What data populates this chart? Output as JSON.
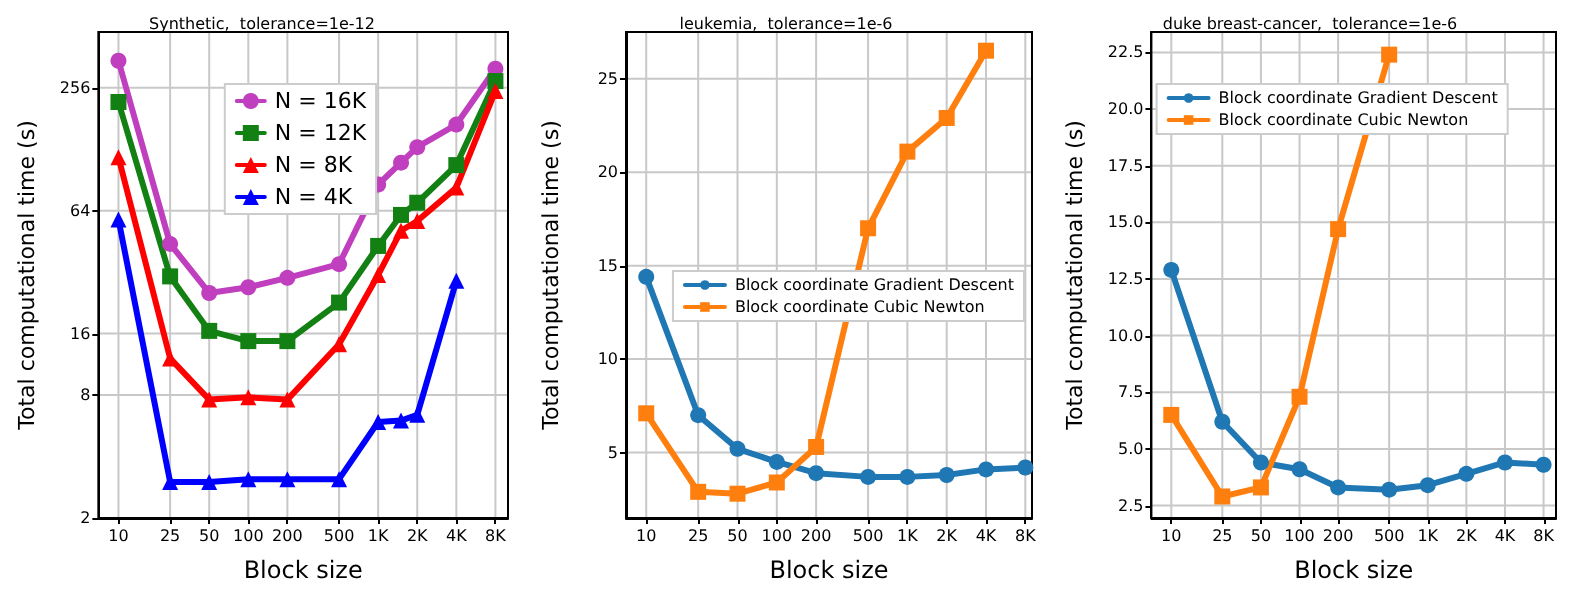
{
  "chart_data": [
    {
      "type": "line",
      "title": "Synthetic,  tolerance=1e-12",
      "xlabel": "Block size",
      "ylabel": "Total computational time (s)",
      "log": "xy",
      "grid": true,
      "legend": "top",
      "line_style": "solid",
      "xlim": [
        7,
        10000
      ],
      "ylim": [
        2,
        480
      ],
      "xticks": [
        10,
        25,
        50,
        100,
        200,
        500,
        {
          "value": 1000,
          "label": "1K"
        },
        {
          "value": 2000,
          "label": "2K"
        },
        {
          "value": 4000,
          "label": "4K"
        },
        {
          "value": 8000,
          "label": "8K"
        }
      ],
      "yticks": [
        2,
        8,
        16,
        64,
        256
      ],
      "series": [
        {
          "name": "N = 16K",
          "color": "#bf3fbf",
          "marker": "circle",
          "x": [
            10,
            25,
            50,
            100,
            200,
            500,
            1000,
            1500,
            2000,
            4000,
            8000
          ],
          "values": [
            347,
            44,
            25.3,
            27,
            30,
            35,
            86,
            110,
            131,
            169,
            317
          ]
        },
        {
          "name": "N = 12K",
          "color": "#138013",
          "marker": "square",
          "x": [
            10,
            25,
            50,
            100,
            200,
            500,
            1000,
            1500,
            2000,
            4000,
            8000
          ],
          "values": [
            218,
            30.5,
            16.5,
            14.7,
            14.7,
            22.7,
            43,
            61,
            70,
            107,
            276
          ]
        },
        {
          "name": "N = 8K",
          "color": "#ff0000",
          "marker": "triangle",
          "x": [
            10,
            25,
            50,
            100,
            200,
            500,
            1000,
            1500,
            2000,
            4000,
            8000
          ],
          "values": [
            117,
            12.1,
            7.6,
            7.8,
            7.6,
            14.2,
            31,
            51,
            57,
            83,
            247
          ]
        },
        {
          "name": "N = 4K",
          "color": "#0000ff",
          "marker": "triangle",
          "x": [
            10,
            25,
            50,
            100,
            200,
            500,
            1000,
            1500,
            2000,
            4000
          ],
          "values": [
            58,
            3.0,
            3.0,
            3.1,
            3.1,
            3.1,
            5.9,
            6.0,
            6.4,
            29
          ]
        }
      ]
    },
    {
      "type": "line",
      "title": "leukemia,  tolerance=1e-6",
      "xlabel": "Block size",
      "ylabel": "Total computational time (s)",
      "log": "x",
      "grid": true,
      "legend": "right",
      "line_style": "solid",
      "xlim": [
        7,
        9000
      ],
      "ylim": [
        1.5,
        27.5
      ],
      "xticks": [
        10,
        25,
        50,
        100,
        200,
        500,
        {
          "value": 1000,
          "label": "1K"
        },
        {
          "value": 2000,
          "label": "2K"
        },
        {
          "value": 4000,
          "label": "4K"
        },
        {
          "value": 8000,
          "label": "8K"
        }
      ],
      "yticks": [
        5,
        10,
        15,
        20,
        25
      ],
      "series": [
        {
          "name": "Block coordinate Gradient Descent",
          "color": "#1f77b4",
          "marker": "circle",
          "x": [
            10,
            25,
            50,
            100,
            200,
            500,
            1000,
            2000,
            4000,
            8000
          ],
          "values": [
            14.4,
            7.0,
            5.2,
            4.5,
            3.9,
            3.7,
            3.7,
            3.8,
            4.1,
            4.2
          ]
        },
        {
          "name": "Block coordinate Cubic Newton",
          "color": "#ff7f0e",
          "marker": "square",
          "x": [
            10,
            25,
            50,
            100,
            200,
            500,
            1000,
            2000,
            4000
          ],
          "values": [
            7.1,
            2.9,
            2.8,
            3.4,
            5.3,
            17.0,
            21.1,
            22.9,
            26.5
          ]
        }
      ]
    },
    {
      "type": "line",
      "title": "duke breast-cancer,  tolerance=1e-6",
      "xlabel": "Block size",
      "ylabel": "Total computational time (s)",
      "log": "x",
      "grid": true,
      "legend": "top",
      "line_style": "solid",
      "xlim": [
        7,
        10000
      ],
      "ylim": [
        1.95,
        23.4
      ],
      "xticks": [
        10,
        25,
        50,
        100,
        200,
        500,
        {
          "value": 1000,
          "label": "1K"
        },
        {
          "value": 2000,
          "label": "2K"
        },
        {
          "value": 4000,
          "label": "4K"
        },
        {
          "value": 8000,
          "label": "8K"
        }
      ],
      "yticks": [
        {
          "value": 2.5,
          "label": "2.5"
        },
        {
          "value": 5,
          "label": "5.0"
        },
        {
          "value": 7.5,
          "label": "7.5"
        },
        {
          "value": 10,
          "label": "10.0"
        },
        {
          "value": 12.5,
          "label": "12.5"
        },
        {
          "value": 15,
          "label": "15.0"
        },
        {
          "value": 17.5,
          "label": "17.5"
        },
        {
          "value": 20,
          "label": "20.0"
        },
        {
          "value": 22.5,
          "label": "22.5"
        }
      ],
      "series": [
        {
          "name": "Block coordinate Gradient Descent",
          "color": "#1f77b4",
          "marker": "circle",
          "x": [
            10,
            25,
            50,
            100,
            200,
            500,
            1000,
            2000,
            4000,
            8000
          ],
          "values": [
            12.9,
            6.2,
            4.4,
            4.1,
            3.3,
            3.2,
            3.4,
            3.9,
            4.4,
            4.3
          ]
        },
        {
          "name": "Block coordinate Cubic Newton",
          "color": "#ff7f0e",
          "marker": "square",
          "x": [
            10,
            25,
            50,
            100,
            200,
            500
          ],
          "values": [
            6.5,
            2.9,
            3.3,
            7.3,
            14.7,
            22.4
          ]
        }
      ]
    }
  ]
}
